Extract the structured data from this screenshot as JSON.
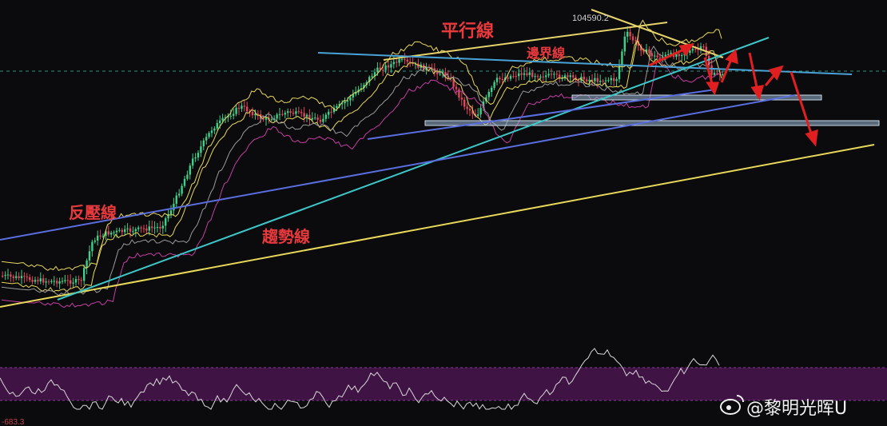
{
  "chart_data": {
    "type": "candlestick",
    "price_label": "104590.2",
    "indicator_label": "-683.3",
    "annotations": {
      "parallel": "平行線",
      "boundary": "邊界線",
      "resistance": "反壓線",
      "trend": "趨勢線"
    },
    "watermark": "@黎明光晖U",
    "colors": {
      "background": "#0b0b0d",
      "up": "#3fcf8a",
      "down": "#e0475a",
      "annotation": "#e8393d",
      "parallel_line": "#e6d36a",
      "trend_line_long": "#e8d85a",
      "trend_line_cyan": "#3cc7c9",
      "trend_line_blue": "#5a6ee0",
      "boundary_line": "#4aa3d6",
      "bollinger": "#e8d85a",
      "bollinger_lower": "#c23fa0",
      "support_band": "#9ab8d6",
      "rsi_band": "#4a1550",
      "rsi_line": "#d8d8d8",
      "arrow": "#e02020"
    }
  }
}
